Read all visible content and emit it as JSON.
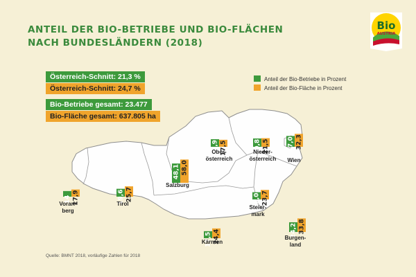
{
  "title": {
    "line1": "ANTEIL DER BIO-BETRIEBE UND BIO-FLÄCHEN",
    "line2": "NACH BUNDESLÄNDERN (2018)"
  },
  "summary": {
    "avg_farms": "Österreich-Schnitt: 21,3 %",
    "avg_area": "Österreich-Schnitt: 24,7 %",
    "total_farms": "Bio-Betriebe gesamt: 23.477",
    "total_area": "Bio-Fläche gesamt: 637.805 ha"
  },
  "legend": {
    "farms": "Anteil der Bio-Betriebe in Prozent",
    "area": "Anteil der Bio-Fläche in Prozent"
  },
  "source": "Quelle: BMNT 2018, vorläufige Zahlen für 2018",
  "logo": {
    "word": "Bio",
    "sub": "AUSTRIA"
  },
  "colors": {
    "farms": "#3d9a3c",
    "area": "#f0a42c",
    "map": "#fefefe",
    "title": "#3a8a3c",
    "background": "#f6f0d6"
  },
  "chart_data": {
    "type": "bar",
    "categories": [
      "Vorarlberg",
      "Tirol",
      "Salzburg",
      "Oberösterreich",
      "Niederösterreich",
      "Wien",
      "Steiermark",
      "Kärnten",
      "Burgenland"
    ],
    "category_labels": [
      [
        "Vorarl-",
        "berg"
      ],
      [
        "Tirol"
      ],
      [
        "Salzburg"
      ],
      [
        "Ober-",
        "österreich"
      ],
      [
        "Nieder-",
        "österreich"
      ],
      [
        "Wien"
      ],
      [
        "Steier-",
        "mark"
      ],
      [
        "Kärnten"
      ],
      [
        "Burgen-",
        "land"
      ]
    ],
    "series": [
      {
        "name": "Anteil der Bio-Betriebe in Prozent",
        "values": [
          14,
          19.6,
          48.1,
          18.9,
          20.8,
          27.0,
          18.0,
          17.5,
          24.2
        ],
        "labels": [
          "14",
          "19,6",
          "48,1",
          "18,9",
          "20,8",
          "27,0",
          "18,0",
          "17,5",
          "24,2"
        ]
      },
      {
        "name": "Anteil der Bio-Fläche in Prozent",
        "values": [
          17.9,
          25.7,
          58.0,
          17.5,
          21.5,
          32.3,
          23.7,
          24.4,
          33.8
        ],
        "labels": [
          "17,9",
          "25,7",
          "58,0",
          "17,5",
          "21,5",
          "32,3",
          "23,7",
          "24,4",
          "33,8"
        ]
      }
    ]
  }
}
